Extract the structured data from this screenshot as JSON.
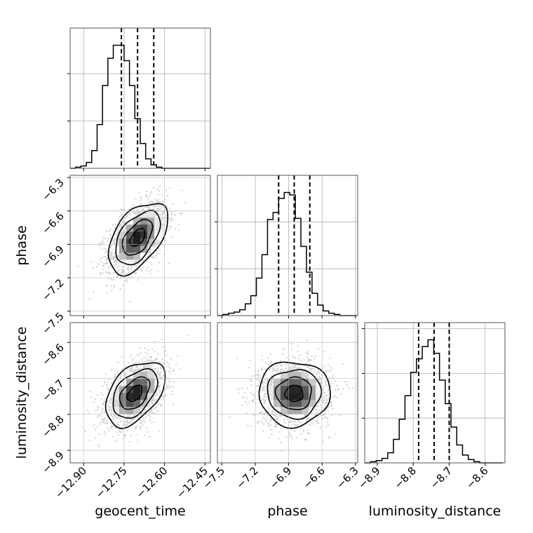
{
  "chart_data": {
    "type": "corner",
    "parameters": [
      "geocent_time",
      "phase",
      "luminosity_distance"
    ],
    "grid": true,
    "quantile_lines": "dashed",
    "axes": [
      {
        "name": "geocent_time",
        "label": "geocent_time",
        "range": [
          -12.95,
          -12.43
        ],
        "ticks": [
          -12.9,
          -12.75,
          -12.6,
          -12.45
        ],
        "tick_labels": [
          "−12.90",
          "−12.75",
          "−12.60",
          "−12.45"
        ],
        "median": -12.7,
        "q16": -12.76,
        "q84": -12.64
      },
      {
        "name": "phase",
        "label": "phase",
        "range": [
          -7.54,
          -6.28
        ],
        "ticks": [
          -7.5,
          -7.2,
          -6.9,
          -6.6,
          -6.3
        ],
        "tick_labels": [
          "−7.5",
          "−7.2",
          "−6.9",
          "−6.6",
          "−6.3"
        ],
        "median": -6.85,
        "q16": -6.99,
        "q84": -6.71
      },
      {
        "name": "luminosity_distance",
        "label": "luminosity_distance",
        "range": [
          -8.935,
          -8.545
        ],
        "ticks": [
          -8.9,
          -8.8,
          -8.7,
          -8.6
        ],
        "tick_labels": [
          "−8.9",
          "−8.8",
          "−8.7",
          "−8.6"
        ],
        "median": -8.742,
        "q16": -8.785,
        "q84": -8.7
      }
    ],
    "histograms": [
      {
        "param": "geocent_time",
        "bin_edges_start": -12.95,
        "bin_width": 0.02,
        "counts": [
          0,
          1,
          2,
          5,
          15,
          37,
          70,
          93,
          104,
          104,
          91,
          70,
          42,
          21,
          8,
          3,
          1,
          0,
          0,
          0,
          0,
          0,
          0,
          0,
          0,
          0
        ]
      },
      {
        "param": "phase",
        "bin_edges_start": -7.54,
        "bin_width": 0.05,
        "counts": [
          0,
          1,
          2,
          3,
          5,
          10,
          17,
          32,
          52,
          82,
          88,
          100,
          105,
          103,
          83,
          59,
          37,
          19,
          9,
          4,
          2,
          1,
          0,
          0,
          0
        ]
      },
      {
        "param": "luminosity_distance",
        "bin_edges_start": -8.935,
        "bin_width": 0.016,
        "counts": [
          0,
          1,
          2,
          4,
          9,
          21,
          39,
          60,
          81,
          93,
          104,
          110,
          98,
          74,
          53,
          32,
          16,
          7,
          3,
          1,
          0,
          0,
          0,
          0
        ]
      }
    ],
    "pairs": [
      {
        "x": "geocent_time",
        "y": "phase",
        "mean": [
          -12.7,
          -6.84
        ],
        "sd": [
          0.055,
          0.16
        ],
        "corr": 0.5
      },
      {
        "x": "geocent_time",
        "y": "luminosity_distance",
        "mean": [
          -12.71,
          -8.742
        ],
        "sd": [
          0.055,
          0.045
        ],
        "corr": 0.45
      },
      {
        "x": "phase",
        "y": "luminosity_distance",
        "mean": [
          -6.85,
          -8.742
        ],
        "sd": [
          0.16,
          0.045
        ],
        "corr": 0.0
      }
    ],
    "contour_levels_sigma": [
      0.5,
      1.0,
      1.5,
      2.0
    ]
  }
}
